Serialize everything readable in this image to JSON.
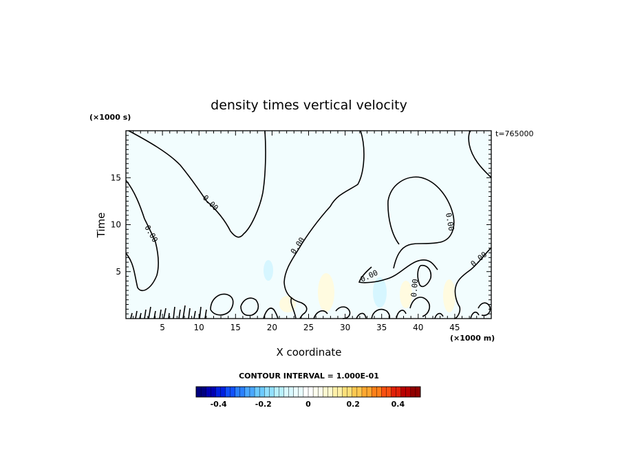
{
  "chart_data": {
    "type": "contour",
    "title": "density times vertical velocity",
    "xlabel": "X coordinate",
    "ylabel": "Time",
    "x_unit": "(×1000 m)",
    "y_unit": "(×1000 s)",
    "time_stamp": "t=765000",
    "xlim": [
      0,
      50
    ],
    "ylim": [
      0,
      20
    ],
    "x_ticks": [
      5,
      10,
      15,
      20,
      25,
      30,
      35,
      40,
      45
    ],
    "y_ticks": [
      5,
      10,
      15
    ],
    "contour_interval": "CONTOUR INTERVAL = 1.000E-01",
    "contour_labels": [
      "0.00",
      "0.00",
      "0.00",
      "0.00",
      "0.00",
      "0.00",
      "0.00",
      "0.00"
    ],
    "colorbar": {
      "range": [
        -0.5,
        0.5
      ],
      "tick_labels": [
        "-0.4",
        "-0.2",
        "0",
        "0.2",
        "0.4"
      ],
      "tick_values": [
        -0.4,
        -0.2,
        0,
        0.2,
        0.4
      ],
      "colors": [
        "#00007f",
        "#0000b2",
        "#0020e0",
        "#1050ff",
        "#2a80ff",
        "#4aa8ff",
        "#6ccaff",
        "#92e0ff",
        "#b8f0ff",
        "#d8f8ff",
        "#eafdff",
        "#ffffff",
        "#ffffee",
        "#fffad0",
        "#fff0a8",
        "#ffe07a",
        "#ffc850",
        "#ffa830",
        "#ff8018",
        "#f85010",
        "#e02008",
        "#b80000",
        "#900000"
      ]
    }
  }
}
